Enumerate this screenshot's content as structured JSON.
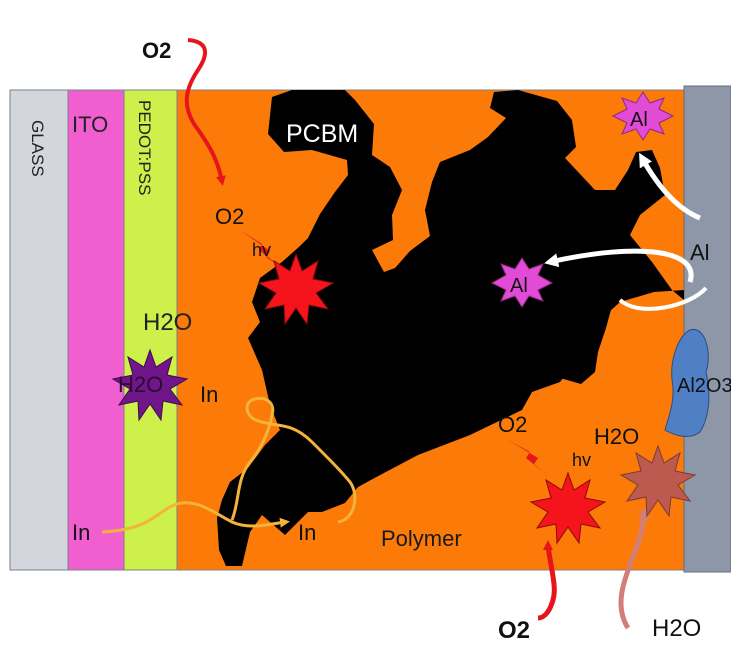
{
  "layers": {
    "glass": "GLASS",
    "ito": "ITO",
    "pedot": "PEDOT:PSS",
    "polymer": "Polymer",
    "pcbm": "PCBM",
    "al_electrode": "Al",
    "al2o3": "Al2O3"
  },
  "labels": {
    "o2_top": "O2",
    "o2_inner": "O2",
    "hv_left": "hv",
    "h2o_pedot": "H2O",
    "h2o_star": "H2O",
    "in_star": "In",
    "in_ito": "In",
    "in_mid": "In",
    "al_star_top": "Al",
    "al_star_mid": "Al",
    "o2_right": "O2",
    "hv_right": "hv",
    "h2o_right": "H2O",
    "o2_bottom": "O2",
    "h2o_bottom": "H2O"
  },
  "colors": {
    "glass": "#d3d6dc",
    "ito": "#f05ed0",
    "pedot": "#cdf04a",
    "polymer": "#fb7a08",
    "pcbm": "#000000",
    "electrode": "#8d97a8",
    "al2o3": "#4f7fc5",
    "o2_arrow": "#e8141c",
    "o2_star": "#f5141c",
    "al_star": "#e24bd6",
    "h2o_star_purple": "#71168a",
    "h2o_star_right": "#bc5a50",
    "indium_arrow": "#f3b43c",
    "h2o_arrow": "#d27f7a"
  }
}
